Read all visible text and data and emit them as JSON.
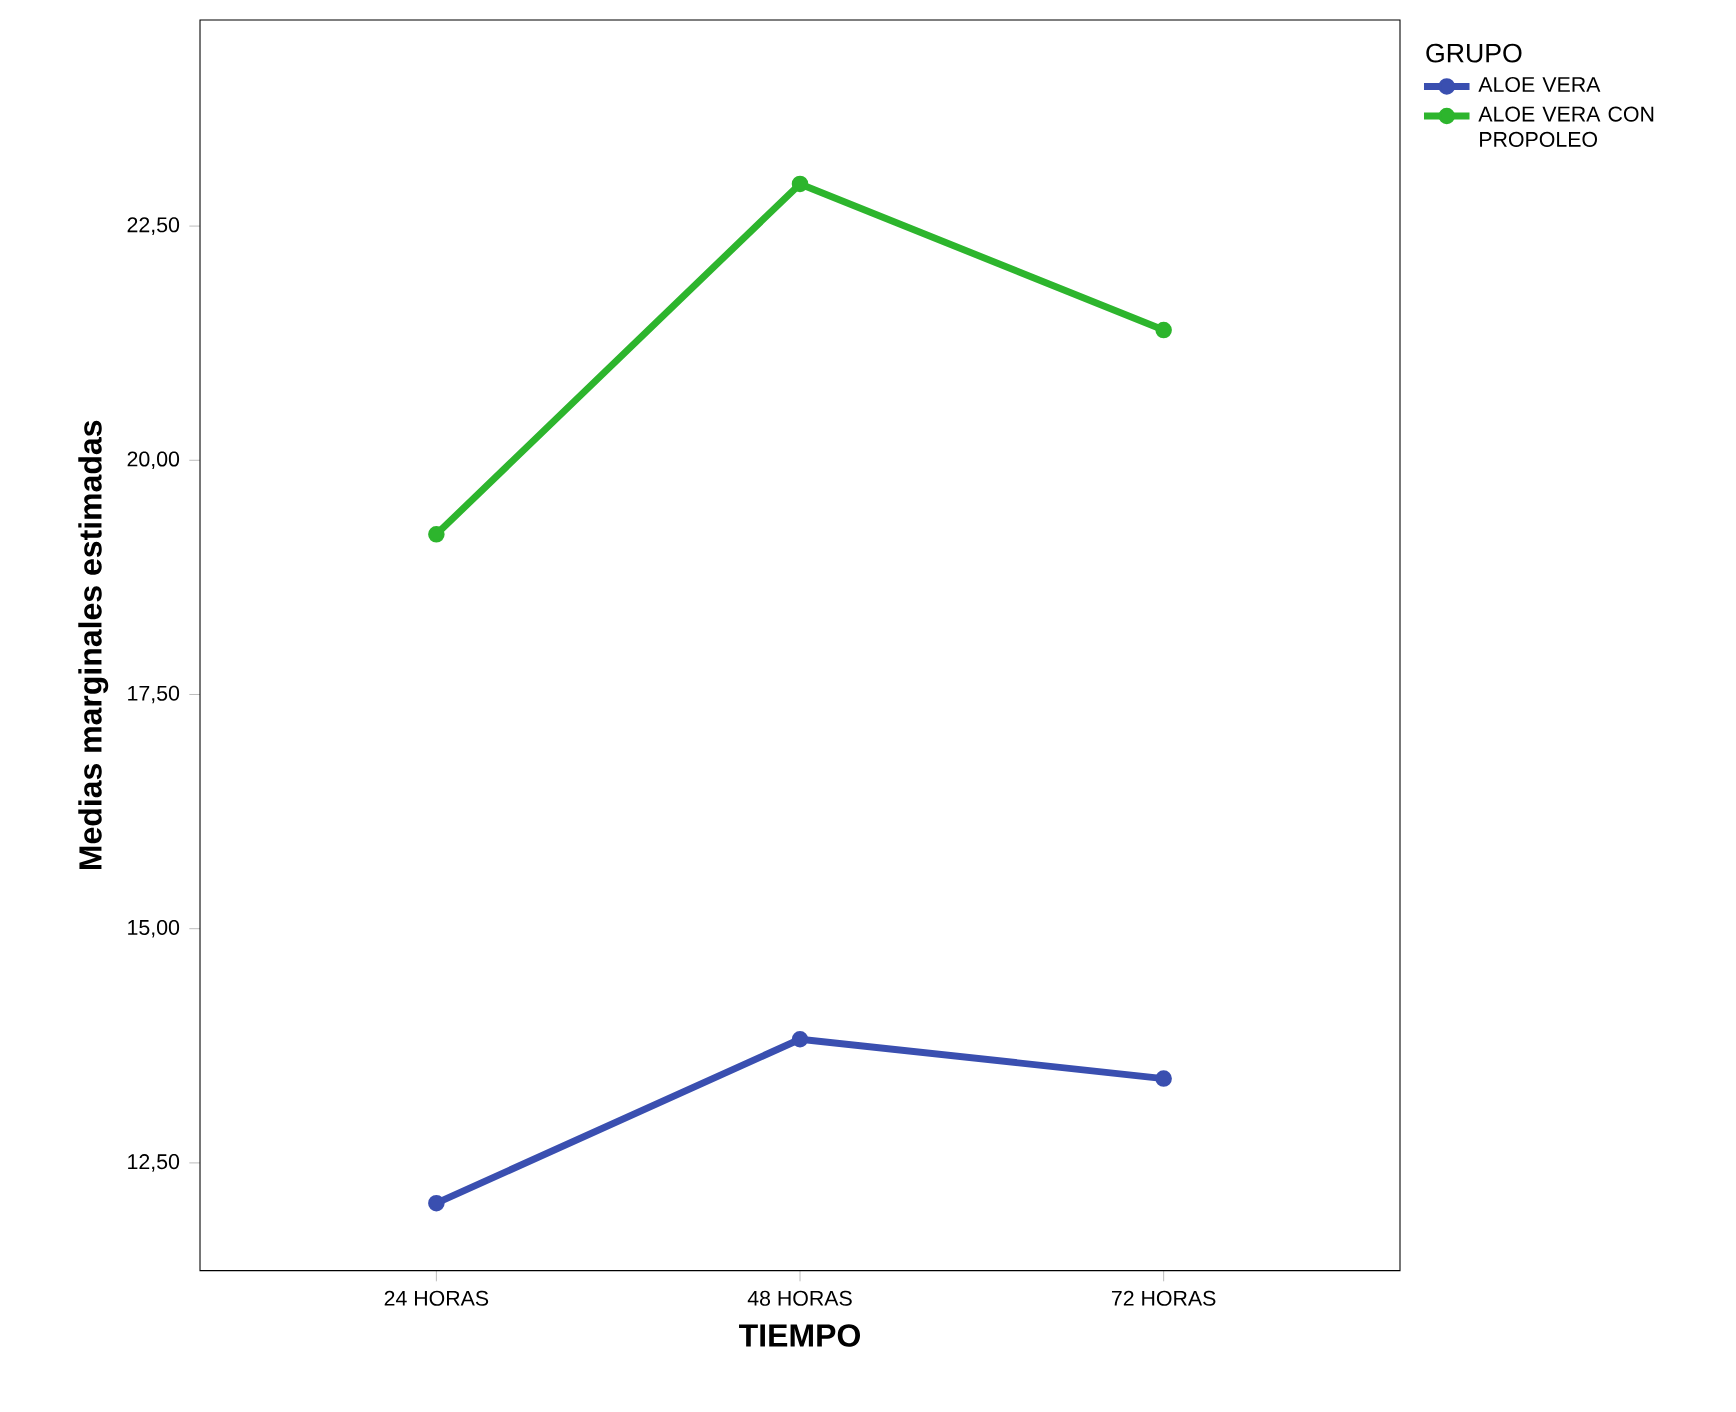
{
  "chart_data": {
    "type": "line",
    "xlabel": "TIEMPO",
    "ylabel": "Medias marginales estimadas",
    "legend_title": "GRUPO",
    "legend": "top right",
    "categories": [
      "24 HORAS",
      "48 HORAS",
      "72 HORAS"
    ],
    "series": [
      {
        "name": "ALOE VERA",
        "color": "#3a4fb0",
        "values": [
          12.07,
          13.82,
          13.4
        ]
      },
      {
        "name": "ALOE VERA CON PROPOLEO",
        "color": "#2db52d",
        "values": [
          19.21,
          22.95,
          21.39
        ]
      }
    ],
    "ylim": [
      11.35,
      24.7
    ],
    "yticks": [
      {
        "value": 12.5,
        "label": "12,50"
      },
      {
        "value": 15,
        "label": "15,00"
      },
      {
        "value": 17.5,
        "label": "17,50"
      },
      {
        "value": 20,
        "label": "20,00"
      },
      {
        "value": 22.5,
        "label": "22,50"
      }
    ],
    "marker": "circle",
    "line_style": "solid",
    "grid": false
  }
}
